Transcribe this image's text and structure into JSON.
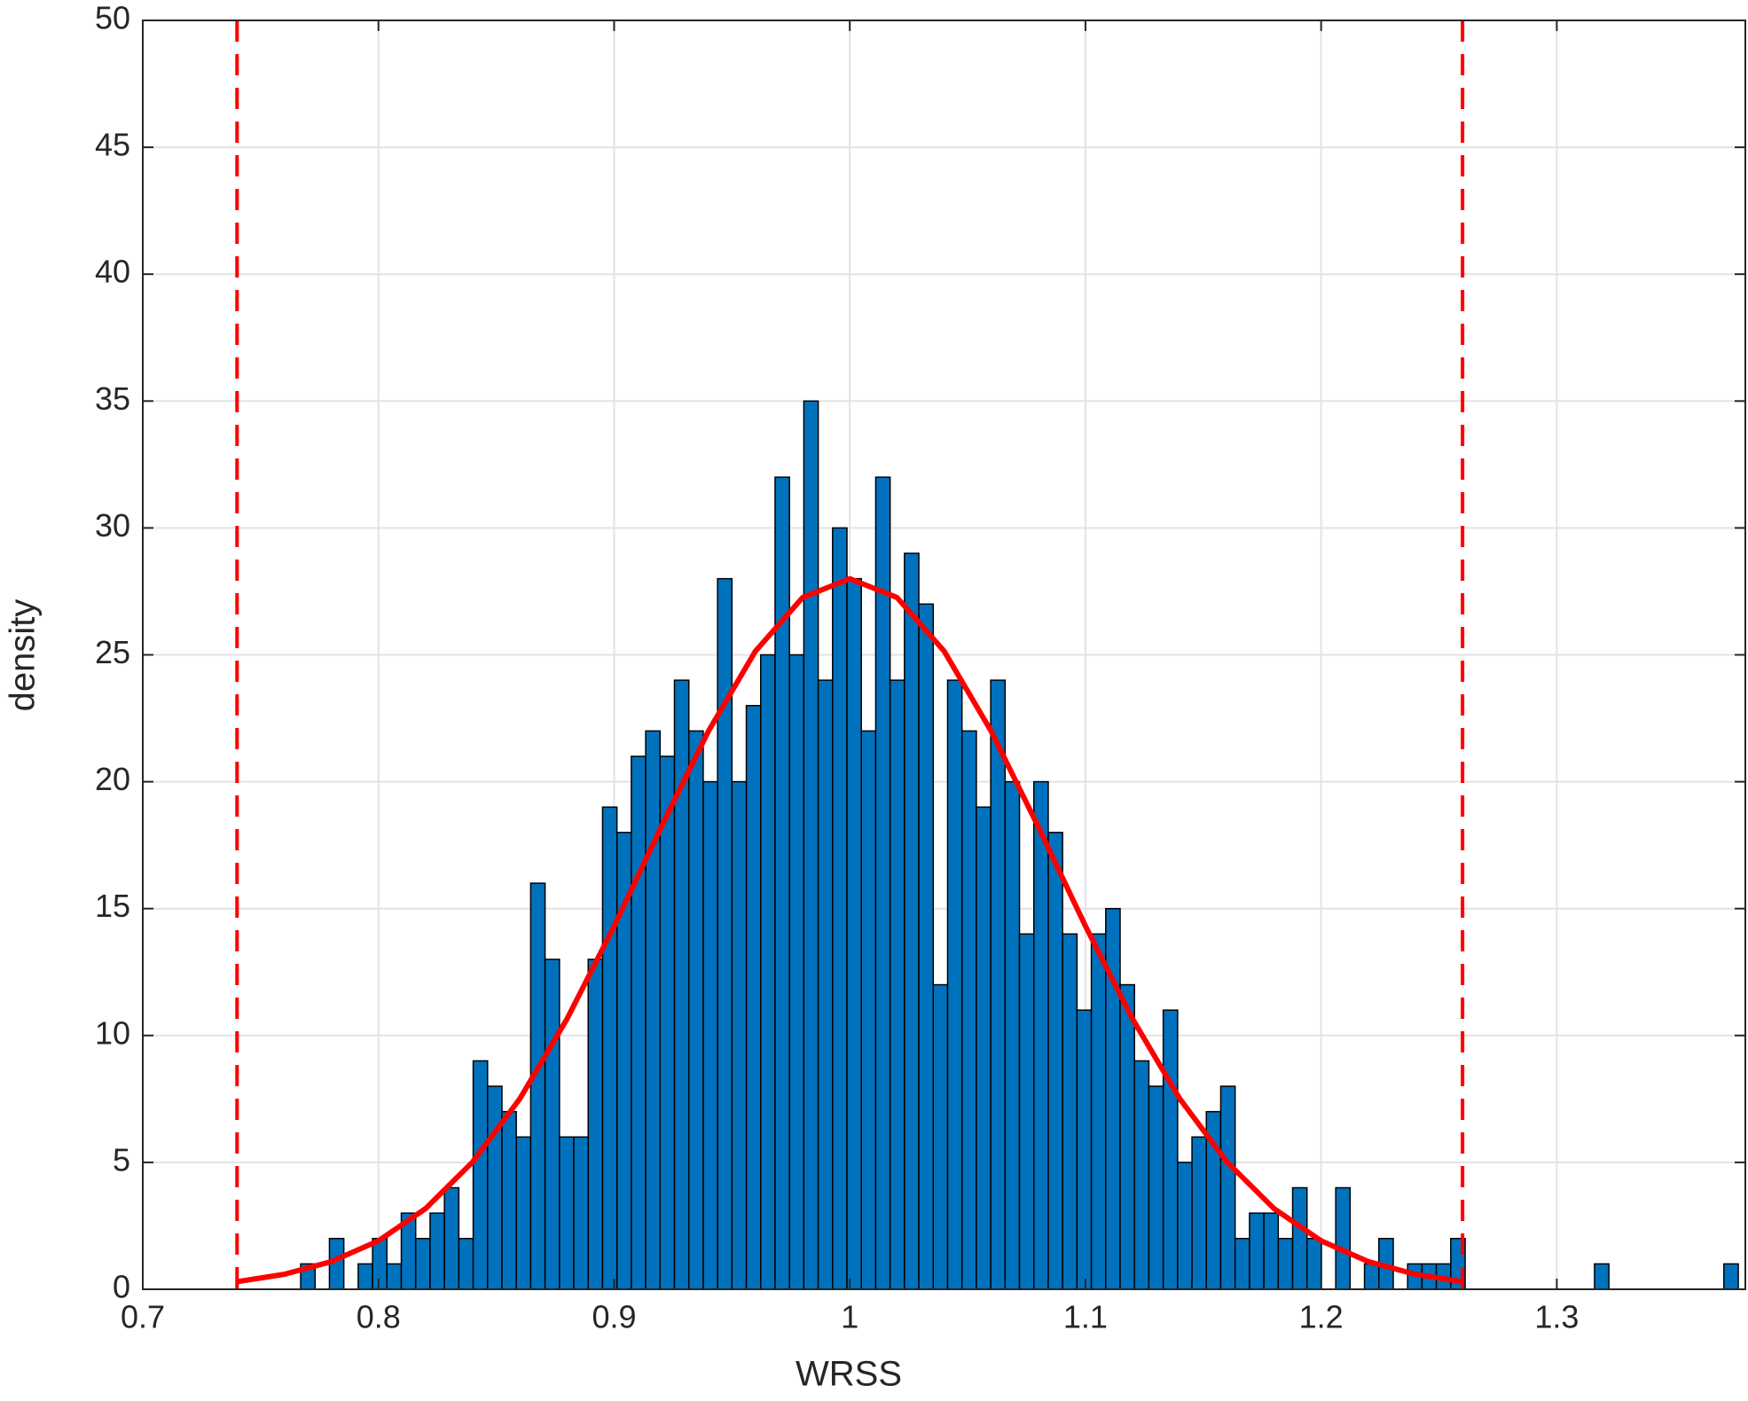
{
  "chart_data": {
    "type": "histogram",
    "xlabel": "WRSS",
    "ylabel": "density",
    "bins": [
      0.767,
      0.7731,
      0.7792,
      0.7853,
      0.7914,
      0.7975,
      0.8036,
      0.8097,
      0.8158,
      0.8219,
      0.828,
      0.8341,
      0.8402,
      0.8463,
      0.8524,
      0.8585,
      0.8646,
      0.8707,
      0.8768,
      0.8829,
      0.889,
      0.8951,
      0.9012,
      0.9073,
      0.9134,
      0.9195,
      0.9256,
      0.9317,
      0.9378,
      0.9439,
      0.95,
      0.9561,
      0.9622,
      0.9683,
      0.9744,
      0.9805,
      0.9866,
      0.9927,
      0.9988,
      1.0049,
      1.011,
      1.0171,
      1.0232,
      1.0293,
      1.0354,
      1.0415,
      1.0476,
      1.0537,
      1.0598,
      1.0659,
      1.072,
      1.0781,
      1.0842,
      1.0903,
      1.0964,
      1.1025,
      1.1086,
      1.1147,
      1.1208,
      1.1269,
      1.133,
      1.1391,
      1.1452,
      1.1513,
      1.1574,
      1.1635,
      1.1696,
      1.1757,
      1.1818,
      1.1879,
      1.194,
      1.2001,
      1.2062,
      1.2123,
      1.2184,
      1.2245,
      1.2306,
      1.2367,
      1.2428,
      1.2489,
      1.255,
      1.2611,
      1.2672,
      1.2733,
      1.2794,
      1.2855,
      1.2916,
      1.2977,
      1.3038,
      1.3099,
      1.316,
      1.3221,
      1.3282,
      1.3343,
      1.3404,
      1.3465,
      1.3526,
      1.3587,
      1.3648,
      1.3709,
      1.377
    ],
    "values": [
      1,
      0,
      2,
      0,
      1,
      2,
      1,
      3,
      2,
      3,
      4,
      2,
      9,
      8,
      7,
      6,
      16,
      13,
      6,
      6,
      13,
      19,
      18,
      21,
      22,
      21,
      24,
      22,
      20,
      28,
      20,
      23,
      25,
      32,
      25,
      35,
      24,
      30,
      28,
      22,
      32,
      24,
      29,
      27,
      12,
      24,
      22,
      19,
      24,
      20,
      14,
      20,
      18,
      14,
      11,
      14,
      15,
      12,
      9,
      8,
      11,
      5,
      6,
      7,
      8,
      2,
      3,
      3,
      2,
      4,
      2,
      0,
      4,
      0,
      1,
      2,
      0,
      1,
      1,
      1,
      2,
      0,
      0,
      0,
      0,
      0,
      0,
      0,
      0,
      0,
      1,
      0,
      0,
      0,
      0,
      0,
      0,
      0,
      0,
      1
    ],
    "color": "#0072bd",
    "curve": {
      "color": "#ff0000",
      "x": [
        0.74,
        0.76,
        0.78,
        0.8,
        0.82,
        0.84,
        0.86,
        0.88,
        0.9,
        0.92,
        0.94,
        0.96,
        0.98,
        1.0,
        1.02,
        1.04,
        1.06,
        1.08,
        1.1,
        1.12,
        1.14,
        1.16,
        1.18,
        1.2,
        1.22,
        1.24,
        1.26
      ],
      "y": [
        0.3,
        0.59,
        1.09,
        1.91,
        3.18,
        5.02,
        7.51,
        10.65,
        14.31,
        18.22,
        21.99,
        25.15,
        27.26,
        28,
        27.26,
        25.15,
        21.99,
        18.22,
        14.31,
        10.65,
        7.51,
        5.02,
        3.18,
        1.91,
        1.09,
        0.59,
        0.3
      ]
    },
    "vlines": {
      "color": "#ff0000",
      "x": [
        0.74,
        1.26
      ]
    },
    "xlim": [
      0.7,
      1.38
    ],
    "ylim": [
      0,
      50
    ],
    "xticks": [
      0.7,
      0.8,
      0.9,
      1,
      1.1,
      1.2,
      1.3
    ],
    "yticks": [
      0,
      5,
      10,
      15,
      20,
      25,
      30,
      35,
      40,
      45,
      50
    ],
    "grid": true
  }
}
